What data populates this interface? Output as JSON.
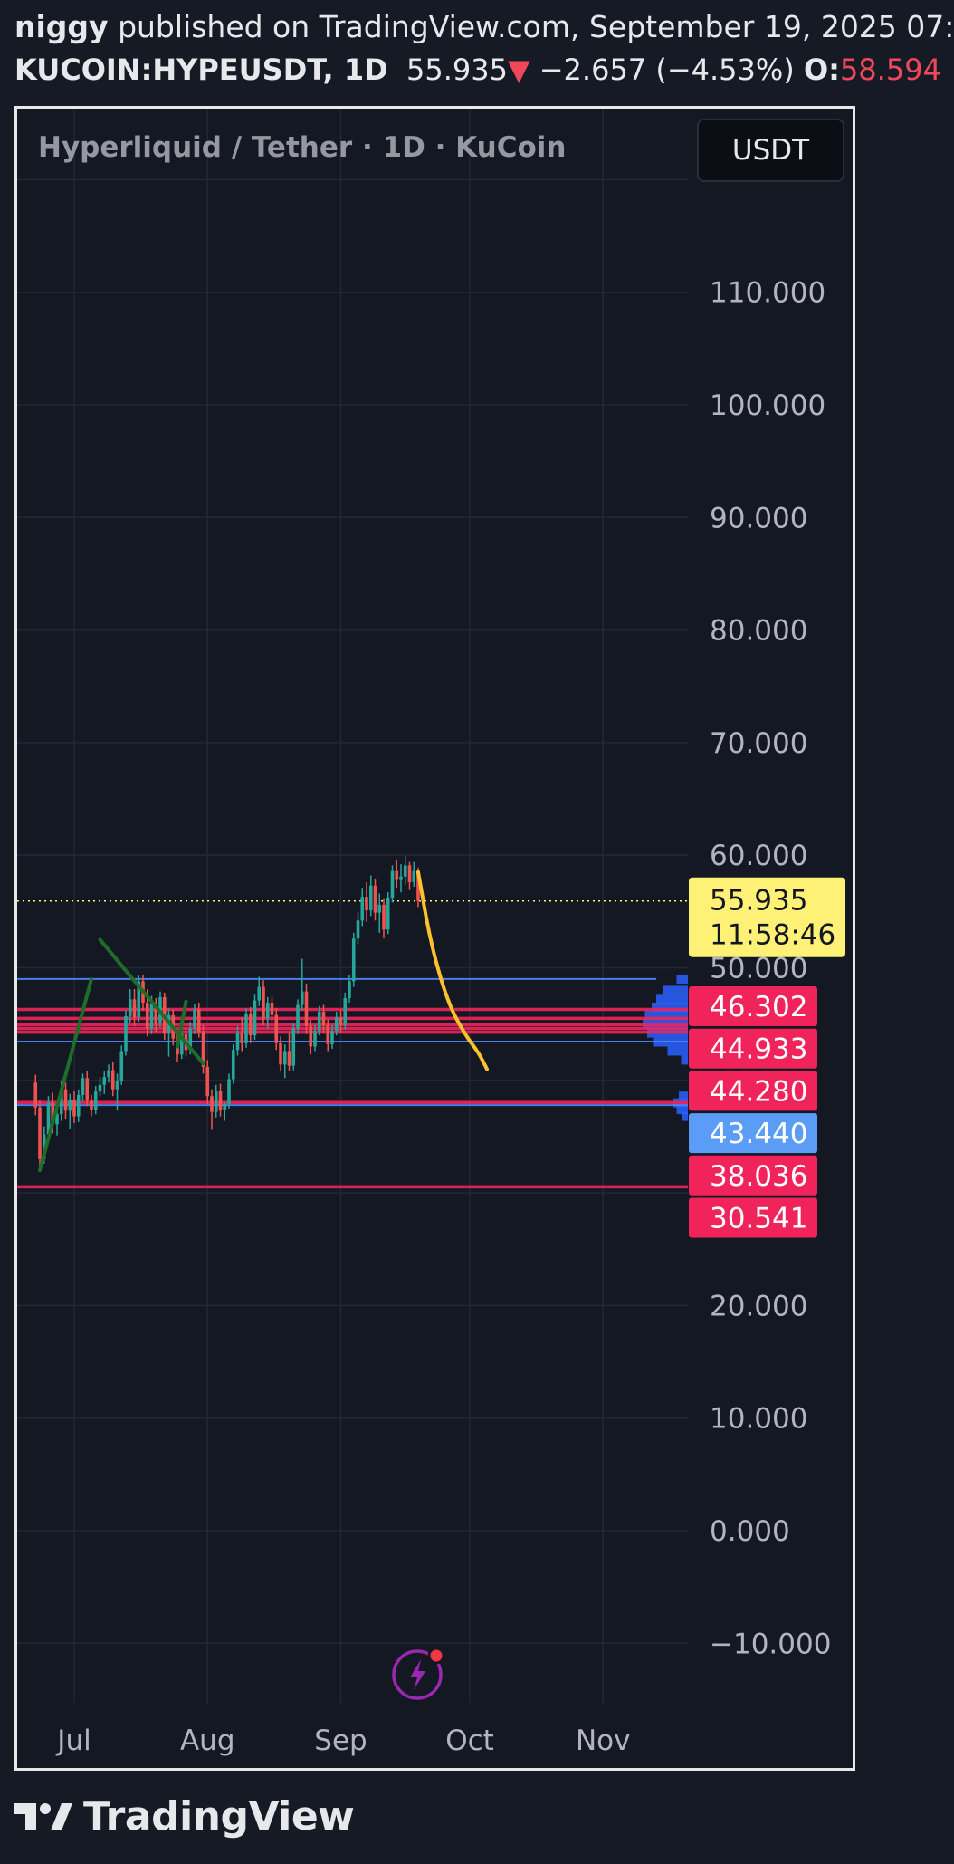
{
  "header": {
    "author": "niggy",
    "published_text": "published on TradingView.com, September 19, 2025 07:",
    "symbol": "KUCOIN:HYPEUSDT, 1D",
    "price": "55.935",
    "change_arrow": "▼",
    "change": "−2.657 (−4.53%)",
    "open_label": "O:",
    "open_value": "58.594"
  },
  "chart_title": "Hyperliquid / Tether · 1D · KuCoin",
  "currency_button": "USDT",
  "footer_brand": "TradingView",
  "icons": {
    "currency": "dropdown-button",
    "flash": "lightning-icon",
    "logo": "tradingview-logo-icon"
  },
  "colors": {
    "up": "#26a69a",
    "down": "#ef5350",
    "level_line": "#f0245a",
    "blue_line": "#4c84f5",
    "forecast": "#ffc12e",
    "trend": "#1e6e2a",
    "price_badge": "#fff176"
  },
  "chart_data": {
    "type": "candlestick",
    "ylim": [
      -15,
      120
    ],
    "y_ticks": [
      "110.000",
      "100.000",
      "90.000",
      "80.000",
      "70.000",
      "60.000",
      "50.000",
      "20.000",
      "10.000",
      "0.000",
      "−10.000"
    ],
    "y_tick_values": [
      110,
      100,
      90,
      80,
      70,
      60,
      50,
      20,
      10,
      0,
      -10
    ],
    "x_ticks": [
      "Jul",
      "Aug",
      "Sep",
      "Oct",
      "Nov"
    ],
    "x_tick_dates": [
      "2025-07-01",
      "2025-08-01",
      "2025-09-01",
      "2025-10-01",
      "2025-11-01"
    ],
    "current_price": {
      "label": "55.935",
      "value": 55.935,
      "countdown": "11:58:46"
    },
    "price_labels": [
      {
        "label": "46.302",
        "value": 46.302,
        "color": "#f0245a"
      },
      {
        "label": "44.933",
        "value": 44.933,
        "color": "#f0245a"
      },
      {
        "label": "44.280",
        "value": 44.28,
        "color": "#f0245a"
      },
      {
        "label": "43.440",
        "value": 43.44,
        "color": "#5b9cf6"
      },
      {
        "label": "38.036",
        "value": 38.036,
        "color": "#f0245a"
      },
      {
        "label": "30.541",
        "value": 30.541,
        "color": "#f0245a"
      }
    ],
    "horizontal_lines": [
      {
        "value": 49.0,
        "color": "#4c84f5"
      },
      {
        "value": 46.302,
        "color": "#f0245a"
      },
      {
        "value": 45.5,
        "color": "#f0245a"
      },
      {
        "value": 44.933,
        "color": "#f0245a"
      },
      {
        "value": 44.6,
        "color": "#f0245a"
      },
      {
        "value": 44.28,
        "color": "#f0245a"
      },
      {
        "value": 43.44,
        "color": "#4c84f5"
      },
      {
        "value": 38.036,
        "color": "#f0245a"
      },
      {
        "value": 37.8,
        "color": "#4c84f5"
      },
      {
        "value": 30.541,
        "color": "#f0245a"
      }
    ],
    "candles": [
      {
        "d": "2025-06-22",
        "o": 39.8,
        "h": 40.5,
        "l": 36.9,
        "c": 37.6
      },
      {
        "d": "2025-06-23",
        "o": 37.6,
        "h": 38.2,
        "l": 32.3,
        "c": 33.0
      },
      {
        "d": "2025-06-24",
        "o": 33.0,
        "h": 35.9,
        "l": 32.6,
        "c": 35.2
      },
      {
        "d": "2025-06-25",
        "o": 35.2,
        "h": 38.6,
        "l": 34.8,
        "c": 38.0
      },
      {
        "d": "2025-06-26",
        "o": 38.0,
        "h": 38.9,
        "l": 35.3,
        "c": 36.1
      },
      {
        "d": "2025-06-27",
        "o": 36.1,
        "h": 37.6,
        "l": 35.1,
        "c": 37.0
      },
      {
        "d": "2025-06-28",
        "o": 37.0,
        "h": 39.9,
        "l": 36.4,
        "c": 39.2
      },
      {
        "d": "2025-06-29",
        "o": 39.2,
        "h": 39.8,
        "l": 36.6,
        "c": 37.3
      },
      {
        "d": "2025-06-30",
        "o": 37.3,
        "h": 38.8,
        "l": 35.7,
        "c": 38.3
      },
      {
        "d": "2025-07-01",
        "o": 38.3,
        "h": 39.1,
        "l": 36.2,
        "c": 36.8
      },
      {
        "d": "2025-07-02",
        "o": 36.8,
        "h": 39.2,
        "l": 36.3,
        "c": 38.7
      },
      {
        "d": "2025-07-03",
        "o": 38.7,
        "h": 40.6,
        "l": 38.1,
        "c": 40.2
      },
      {
        "d": "2025-07-04",
        "o": 40.2,
        "h": 40.8,
        "l": 37.7,
        "c": 38.2
      },
      {
        "d": "2025-07-05",
        "o": 38.2,
        "h": 38.7,
        "l": 36.8,
        "c": 37.4
      },
      {
        "d": "2025-07-06",
        "o": 37.4,
        "h": 39.5,
        "l": 37.0,
        "c": 39.0
      },
      {
        "d": "2025-07-07",
        "o": 39.0,
        "h": 40.3,
        "l": 38.6,
        "c": 39.6
      },
      {
        "d": "2025-07-08",
        "o": 39.6,
        "h": 40.8,
        "l": 38.8,
        "c": 40.3
      },
      {
        "d": "2025-07-09",
        "o": 40.3,
        "h": 41.4,
        "l": 39.8,
        "c": 40.9
      },
      {
        "d": "2025-07-10",
        "o": 40.9,
        "h": 41.6,
        "l": 38.6,
        "c": 39.2
      },
      {
        "d": "2025-07-11",
        "o": 39.2,
        "h": 40.6,
        "l": 37.3,
        "c": 39.9
      },
      {
        "d": "2025-07-12",
        "o": 39.9,
        "h": 43.1,
        "l": 39.6,
        "c": 42.6
      },
      {
        "d": "2025-07-13",
        "o": 42.6,
        "h": 46.2,
        "l": 42.2,
        "c": 45.7
      },
      {
        "d": "2025-07-14",
        "o": 45.7,
        "h": 48.1,
        "l": 45.1,
        "c": 47.2
      },
      {
        "d": "2025-07-15",
        "o": 47.2,
        "h": 48.1,
        "l": 44.8,
        "c": 45.6
      },
      {
        "d": "2025-07-16",
        "o": 45.6,
        "h": 49.3,
        "l": 45.2,
        "c": 48.8
      },
      {
        "d": "2025-07-17",
        "o": 48.8,
        "h": 49.4,
        "l": 46.2,
        "c": 46.9
      },
      {
        "d": "2025-07-18",
        "o": 46.9,
        "h": 48.1,
        "l": 43.9,
        "c": 44.6
      },
      {
        "d": "2025-07-19",
        "o": 44.6,
        "h": 47.5,
        "l": 44.1,
        "c": 46.8
      },
      {
        "d": "2025-07-20",
        "o": 46.8,
        "h": 47.3,
        "l": 44.3,
        "c": 45.1
      },
      {
        "d": "2025-07-21",
        "o": 45.1,
        "h": 47.9,
        "l": 44.7,
        "c": 47.4
      },
      {
        "d": "2025-07-22",
        "o": 47.4,
        "h": 47.8,
        "l": 43.6,
        "c": 44.2
      },
      {
        "d": "2025-07-23",
        "o": 44.2,
        "h": 46.4,
        "l": 42.1,
        "c": 45.8
      },
      {
        "d": "2025-07-24",
        "o": 45.8,
        "h": 46.3,
        "l": 43.1,
        "c": 43.7
      },
      {
        "d": "2025-07-25",
        "o": 43.7,
        "h": 44.4,
        "l": 41.6,
        "c": 42.3
      },
      {
        "d": "2025-07-26",
        "o": 42.3,
        "h": 44.6,
        "l": 41.9,
        "c": 44.1
      },
      {
        "d": "2025-07-27",
        "o": 44.1,
        "h": 44.7,
        "l": 42.1,
        "c": 42.7
      },
      {
        "d": "2025-07-28",
        "o": 42.7,
        "h": 45.2,
        "l": 42.3,
        "c": 44.6
      },
      {
        "d": "2025-07-29",
        "o": 44.6,
        "h": 46.8,
        "l": 44.1,
        "c": 46.3
      },
      {
        "d": "2025-07-30",
        "o": 46.3,
        "h": 46.9,
        "l": 43.8,
        "c": 44.3
      },
      {
        "d": "2025-07-31",
        "o": 44.3,
        "h": 44.9,
        "l": 40.6,
        "c": 41.2
      },
      {
        "d": "2025-08-01",
        "o": 41.2,
        "h": 41.8,
        "l": 37.9,
        "c": 38.6
      },
      {
        "d": "2025-08-02",
        "o": 38.6,
        "h": 39.2,
        "l": 35.6,
        "c": 37.2
      },
      {
        "d": "2025-08-03",
        "o": 37.2,
        "h": 39.6,
        "l": 36.7,
        "c": 39.1
      },
      {
        "d": "2025-08-04",
        "o": 39.1,
        "h": 39.7,
        "l": 36.8,
        "c": 37.4
      },
      {
        "d": "2025-08-05",
        "o": 37.4,
        "h": 38.1,
        "l": 36.4,
        "c": 37.9
      },
      {
        "d": "2025-08-06",
        "o": 37.9,
        "h": 40.6,
        "l": 37.5,
        "c": 40.1
      },
      {
        "d": "2025-08-07",
        "o": 40.1,
        "h": 43.2,
        "l": 39.7,
        "c": 42.7
      },
      {
        "d": "2025-08-08",
        "o": 42.7,
        "h": 44.8,
        "l": 42.2,
        "c": 44.2
      },
      {
        "d": "2025-08-09",
        "o": 44.2,
        "h": 45.6,
        "l": 42.6,
        "c": 43.3
      },
      {
        "d": "2025-08-10",
        "o": 43.3,
        "h": 46.4,
        "l": 42.9,
        "c": 45.9
      },
      {
        "d": "2025-08-11",
        "o": 45.9,
        "h": 46.5,
        "l": 43.3,
        "c": 44.0
      },
      {
        "d": "2025-08-12",
        "o": 44.0,
        "h": 47.6,
        "l": 43.6,
        "c": 47.1
      },
      {
        "d": "2025-08-13",
        "o": 47.1,
        "h": 49.2,
        "l": 46.6,
        "c": 48.3
      },
      {
        "d": "2025-08-14",
        "o": 48.3,
        "h": 48.9,
        "l": 44.9,
        "c": 45.5
      },
      {
        "d": "2025-08-15",
        "o": 45.5,
        "h": 47.4,
        "l": 44.6,
        "c": 46.9
      },
      {
        "d": "2025-08-16",
        "o": 46.9,
        "h": 47.4,
        "l": 45.2,
        "c": 45.8
      },
      {
        "d": "2025-08-17",
        "o": 45.8,
        "h": 46.4,
        "l": 42.7,
        "c": 43.3
      },
      {
        "d": "2025-08-18",
        "o": 43.3,
        "h": 43.9,
        "l": 40.8,
        "c": 41.4
      },
      {
        "d": "2025-08-19",
        "o": 41.4,
        "h": 43.2,
        "l": 40.2,
        "c": 42.6
      },
      {
        "d": "2025-08-20",
        "o": 42.6,
        "h": 44.2,
        "l": 40.8,
        "c": 41.3
      },
      {
        "d": "2025-08-21",
        "o": 41.3,
        "h": 45.1,
        "l": 40.9,
        "c": 44.6
      },
      {
        "d": "2025-08-22",
        "o": 44.6,
        "h": 47.2,
        "l": 44.1,
        "c": 46.7
      },
      {
        "d": "2025-08-23",
        "o": 46.7,
        "h": 50.8,
        "l": 46.2,
        "c": 47.9
      },
      {
        "d": "2025-08-24",
        "o": 47.9,
        "h": 48.6,
        "l": 44.1,
        "c": 44.8
      },
      {
        "d": "2025-08-25",
        "o": 44.8,
        "h": 45.4,
        "l": 42.3,
        "c": 43.0
      },
      {
        "d": "2025-08-26",
        "o": 43.0,
        "h": 44.9,
        "l": 42.6,
        "c": 44.4
      },
      {
        "d": "2025-08-27",
        "o": 44.4,
        "h": 46.6,
        "l": 44.0,
        "c": 46.1
      },
      {
        "d": "2025-08-28",
        "o": 46.1,
        "h": 46.7,
        "l": 44.2,
        "c": 44.9
      },
      {
        "d": "2025-08-29",
        "o": 44.9,
        "h": 45.4,
        "l": 42.6,
        "c": 43.2
      },
      {
        "d": "2025-08-30",
        "o": 43.2,
        "h": 44.9,
        "l": 42.8,
        "c": 44.4
      },
      {
        "d": "2025-08-31",
        "o": 44.4,
        "h": 46.1,
        "l": 44.0,
        "c": 45.6
      },
      {
        "d": "2025-09-01",
        "o": 45.6,
        "h": 46.2,
        "l": 44.2,
        "c": 44.9
      },
      {
        "d": "2025-09-02",
        "o": 44.9,
        "h": 47.8,
        "l": 44.5,
        "c": 47.3
      },
      {
        "d": "2025-09-03",
        "o": 47.3,
        "h": 49.4,
        "l": 46.9,
        "c": 48.8
      },
      {
        "d": "2025-09-04",
        "o": 48.8,
        "h": 53.1,
        "l": 48.3,
        "c": 52.6
      },
      {
        "d": "2025-09-05",
        "o": 52.6,
        "h": 54.9,
        "l": 52.1,
        "c": 54.2
      },
      {
        "d": "2025-09-06",
        "o": 54.2,
        "h": 57.1,
        "l": 53.7,
        "c": 56.3
      },
      {
        "d": "2025-09-07",
        "o": 56.3,
        "h": 57.6,
        "l": 54.1,
        "c": 55.1
      },
      {
        "d": "2025-09-08",
        "o": 55.1,
        "h": 58.2,
        "l": 54.6,
        "c": 57.3
      },
      {
        "d": "2025-09-09",
        "o": 57.3,
        "h": 57.9,
        "l": 54.2,
        "c": 54.9
      },
      {
        "d": "2025-09-10",
        "o": 54.9,
        "h": 56.6,
        "l": 53.1,
        "c": 55.6
      },
      {
        "d": "2025-09-11",
        "o": 55.6,
        "h": 56.1,
        "l": 52.6,
        "c": 53.4
      },
      {
        "d": "2025-09-12",
        "o": 53.4,
        "h": 56.7,
        "l": 53.0,
        "c": 56.2
      },
      {
        "d": "2025-09-13",
        "o": 56.2,
        "h": 59.1,
        "l": 55.8,
        "c": 58.6
      },
      {
        "d": "2025-09-14",
        "o": 58.6,
        "h": 59.6,
        "l": 57.1,
        "c": 57.8
      },
      {
        "d": "2025-09-15",
        "o": 57.8,
        "h": 59.2,
        "l": 56.7,
        "c": 58.1
      },
      {
        "d": "2025-09-16",
        "o": 58.1,
        "h": 59.9,
        "l": 57.4,
        "c": 59.1
      },
      {
        "d": "2025-09-17",
        "o": 59.1,
        "h": 59.4,
        "l": 56.9,
        "c": 57.6
      },
      {
        "d": "2025-09-18",
        "o": 57.6,
        "h": 59.4,
        "l": 57.2,
        "c": 58.594
      },
      {
        "d": "2025-09-19",
        "o": 58.594,
        "h": 58.9,
        "l": 55.4,
        "c": 55.935
      }
    ],
    "drawings": {
      "forecast_curve": [
        [
          "2025-09-19",
          58.5
        ],
        [
          "2025-09-22",
          52.0
        ],
        [
          "2025-09-26",
          46.8
        ],
        [
          "2025-09-30",
          44.0
        ],
        [
          "2025-10-03",
          42.5
        ],
        [
          "2025-10-05",
          41.0
        ]
      ],
      "trend_up": [
        [
          "2025-06-23",
          32.0
        ],
        [
          "2025-07-05",
          49.0
        ]
      ],
      "trend_down": [
        [
          "2025-07-07",
          52.5
        ],
        [
          "2025-07-31",
          41.5
        ]
      ],
      "trend_short": [
        [
          "2025-07-25",
          43.0
        ],
        [
          "2025-07-27",
          47.0
        ]
      ]
    },
    "volume_profile": [
      {
        "price": 49.0,
        "size": 0.25
      },
      {
        "price": 48.0,
        "size": 0.55
      },
      {
        "price": 47.2,
        "size": 0.7
      },
      {
        "price": 46.5,
        "size": 0.8
      },
      {
        "price": 45.8,
        "size": 0.95
      },
      {
        "price": 45.0,
        "size": 1.0
      },
      {
        "price": 44.2,
        "size": 0.9
      },
      {
        "price": 43.4,
        "size": 0.75
      },
      {
        "price": 42.6,
        "size": 0.45
      },
      {
        "price": 41.8,
        "size": 0.15
      },
      {
        "price": 38.6,
        "size": 0.2
      },
      {
        "price": 38.0,
        "size": 0.32
      },
      {
        "price": 37.4,
        "size": 0.25
      },
      {
        "price": 36.8,
        "size": 0.12
      }
    ]
  }
}
